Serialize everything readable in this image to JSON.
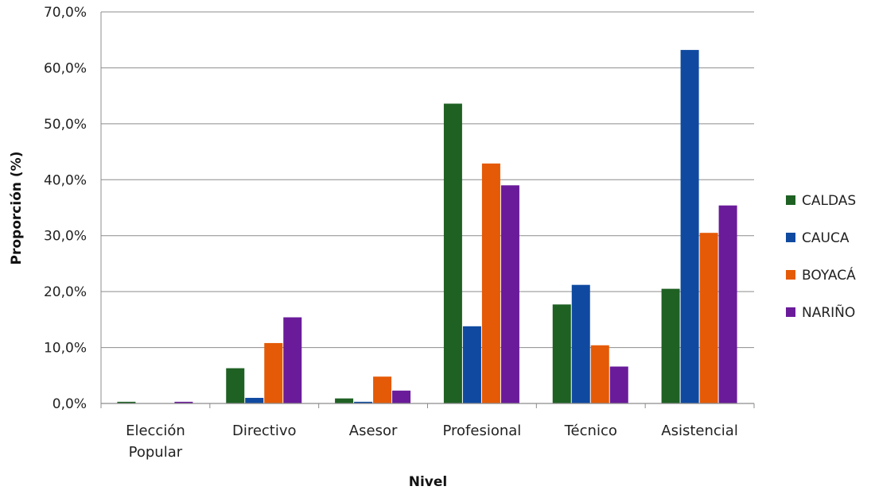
{
  "chart_data": {
    "type": "bar",
    "title": "",
    "xlabel": "Nivel",
    "ylabel": "Proporción (%)",
    "ylim": [
      0,
      70
    ],
    "yticks": [
      0,
      10,
      20,
      30,
      40,
      50,
      60,
      70
    ],
    "ytick_labels": [
      "0,0%",
      "10,0%",
      "20,0%",
      "30,0%",
      "40,0%",
      "50,0%",
      "60,0%",
      "70,0%"
    ],
    "grid": true,
    "legend_position": "right",
    "categories": [
      "Elección Popular",
      "Directivo",
      "Asesor",
      "Profesional",
      "Técnico",
      "Asistencial"
    ],
    "category_label_lines": [
      [
        "Elección",
        "Popular"
      ],
      [
        "Directivo"
      ],
      [
        "Asesor"
      ],
      [
        "Profesional"
      ],
      [
        "Técnico"
      ],
      [
        "Asistencial"
      ]
    ],
    "series": [
      {
        "name": "CALDAS",
        "color": "#1e6123",
        "values": [
          0.3,
          6.3,
          0.9,
          53.6,
          17.7,
          20.5
        ]
      },
      {
        "name": "CAUCA",
        "color": "#0f4aa0",
        "values": [
          0.0,
          1.0,
          0.3,
          13.8,
          21.2,
          63.2
        ]
      },
      {
        "name": "BOYACÁ",
        "color": "#e55a06",
        "values": [
          0.0,
          10.8,
          4.8,
          42.9,
          10.4,
          30.5
        ]
      },
      {
        "name": "NARIÑO",
        "color": "#6a1b9a",
        "values": [
          0.3,
          15.4,
          2.3,
          39.0,
          6.6,
          35.4
        ]
      }
    ]
  }
}
